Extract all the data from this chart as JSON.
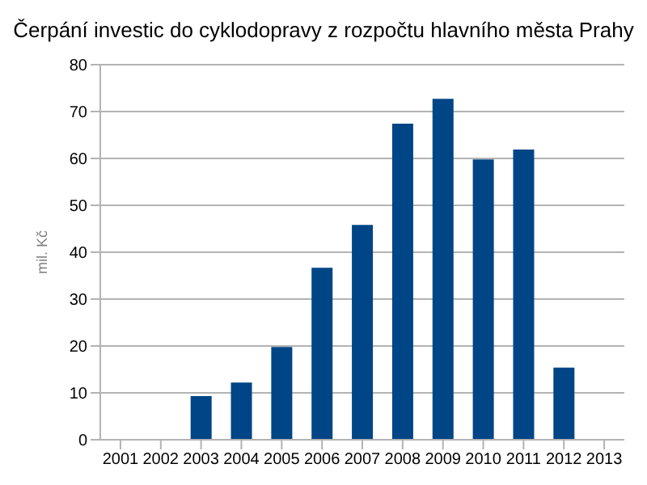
{
  "chart_data": {
    "type": "bar",
    "title": "Čerpání investic do cyklodopravy z rozpočtu hlavního města Prahy",
    "ylabel": "mil. Kč",
    "categories": [
      "2001",
      "2002",
      "2003",
      "2004",
      "2005",
      "2006",
      "2007",
      "2008",
      "2009",
      "2010",
      "2011",
      "2012",
      "2013"
    ],
    "values": [
      0,
      0,
      9.3,
      12.2,
      19.8,
      36.7,
      45.8,
      67.4,
      72.7,
      59.8,
      61.9,
      15.4,
      0
    ],
    "color": "#004586",
    "ylim": [
      0,
      80
    ],
    "yticks": [
      0,
      10,
      20,
      30,
      40,
      50,
      60,
      70,
      80
    ],
    "grid": "y",
    "legend": false
  }
}
